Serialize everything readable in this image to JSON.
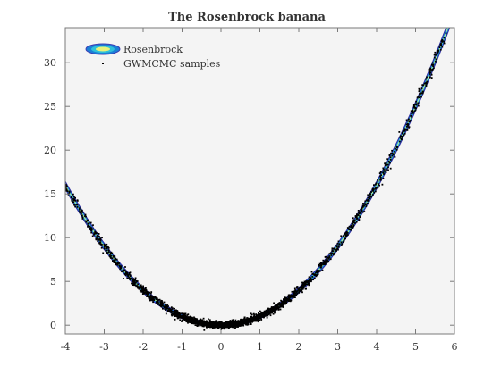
{
  "chart_data": {
    "type": "scatter",
    "title": "The Rosenbrock banana",
    "xlabel": "",
    "ylabel": "",
    "xlim": [
      -4,
      6
    ],
    "ylim": [
      -1,
      34
    ],
    "xticks": [
      -4,
      -3,
      -2,
      -1,
      0,
      1,
      2,
      3,
      4,
      5,
      6
    ],
    "yticks": [
      0,
      5,
      10,
      15,
      20,
      25,
      30
    ],
    "grid": false,
    "legend_position": "top-left",
    "series": [
      {
        "name": "Rosenbrock",
        "kind": "contour",
        "curve": "y = x^2",
        "x_range": [
          -4,
          5.9
        ],
        "level_colors": [
          "#3b3bb3",
          "#1a7fd6",
          "#2ec0d9",
          "#e8f27a"
        ]
      },
      {
        "name": "GWMCMC samples",
        "kind": "scatter",
        "marker": "dot",
        "color": "#000000",
        "x_range": [
          -4,
          5.8
        ],
        "y_relation": "approximately x^2",
        "approx_points": [
          [
            -4.0,
            16.0
          ],
          [
            -3.5,
            12.3
          ],
          [
            -3.0,
            9.0
          ],
          [
            -2.5,
            6.2
          ],
          [
            -2.0,
            4.0
          ],
          [
            -1.5,
            2.3
          ],
          [
            -1.0,
            1.0
          ],
          [
            -0.5,
            0.3
          ],
          [
            0.0,
            0.1
          ],
          [
            0.5,
            0.3
          ],
          [
            1.0,
            1.0
          ],
          [
            1.5,
            2.3
          ],
          [
            2.0,
            4.0
          ],
          [
            2.5,
            6.3
          ],
          [
            3.0,
            9.0
          ],
          [
            3.5,
            12.3
          ],
          [
            4.0,
            16.0
          ],
          [
            4.5,
            20.3
          ],
          [
            5.0,
            25.0
          ],
          [
            5.5,
            30.3
          ],
          [
            5.8,
            33.6
          ]
        ]
      }
    ]
  }
}
